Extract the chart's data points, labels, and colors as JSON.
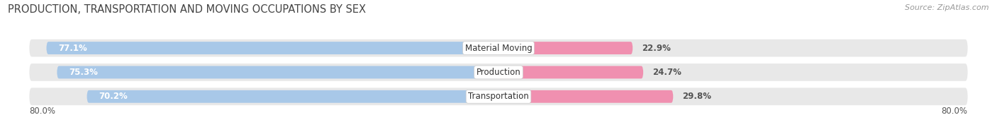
{
  "title": "PRODUCTION, TRANSPORTATION AND MOVING OCCUPATIONS BY SEX",
  "source": "Source: ZipAtlas.com",
  "categories": [
    "Material Moving",
    "Production",
    "Transportation"
  ],
  "male_values": [
    77.1,
    75.3,
    70.2
  ],
  "female_values": [
    22.9,
    24.7,
    29.8
  ],
  "male_color": "#a8c8e8",
  "female_color": "#f090b0",
  "bar_bg_color": "#e8e8e8",
  "background_color": "#ffffff",
  "axis_max": 80.0,
  "axis_label_left": "80.0%",
  "axis_label_right": "80.0%",
  "title_fontsize": 10.5,
  "source_fontsize": 8,
  "bar_label_fontsize": 8.5,
  "category_fontsize": 8.5,
  "legend_fontsize": 9
}
